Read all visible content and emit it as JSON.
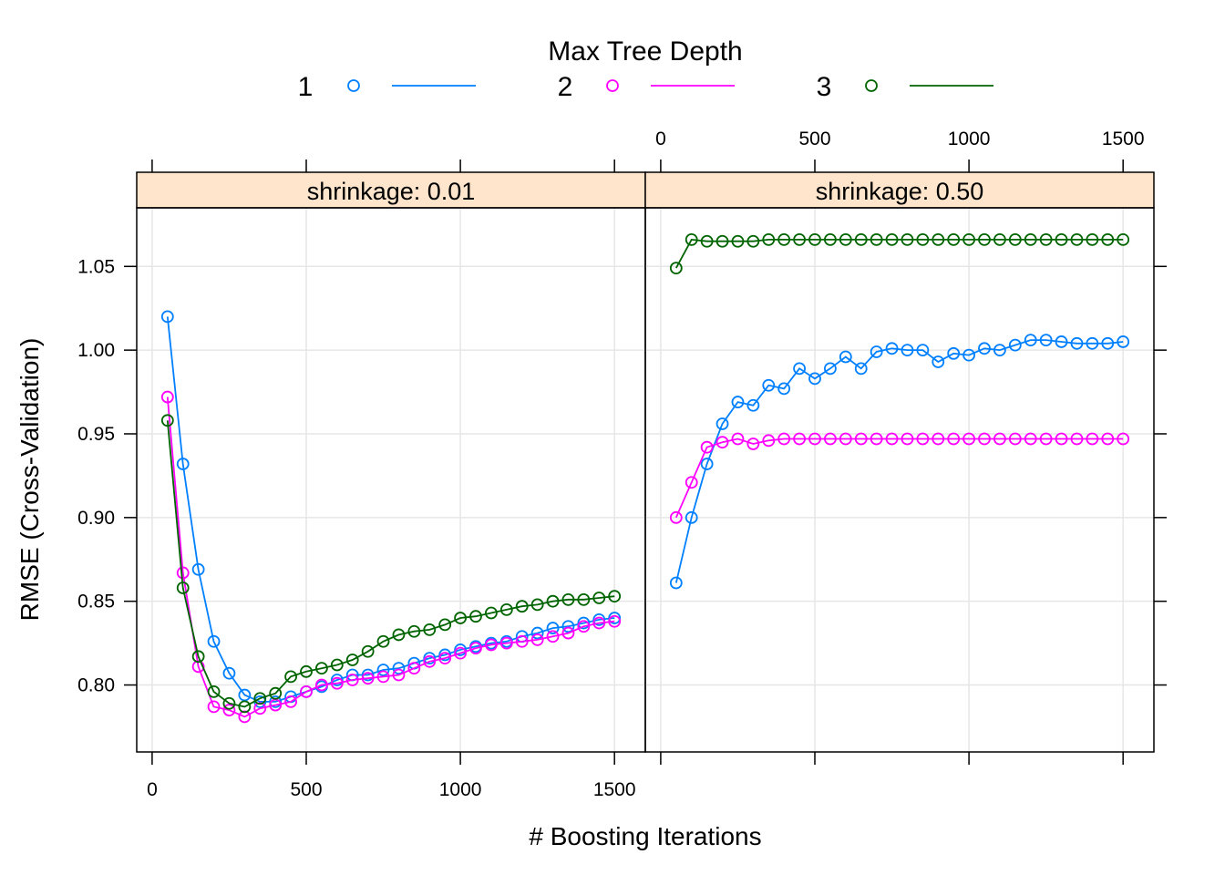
{
  "chart_data": {
    "type": "line",
    "xlabel": "# Boosting Iterations",
    "ylabel": "RMSE (Cross-Validation)",
    "xlim": [
      -50,
      1600
    ],
    "ylim": [
      0.76,
      1.085
    ],
    "x_ticks": [
      0,
      500,
      1000,
      1500
    ],
    "x_tick_labels": [
      "0",
      "500",
      "1000",
      "1500"
    ],
    "y_ticks": [
      0.8,
      0.85,
      0.9,
      0.95,
      1.0,
      1.05
    ],
    "y_tick_labels": [
      "0.80",
      "0.85",
      "0.90",
      "0.95",
      "1.00",
      "1.05"
    ],
    "grid": true,
    "legend": {
      "title": "Max Tree Depth",
      "position": "top",
      "entries": [
        {
          "label": "1",
          "color": "#0080ff"
        },
        {
          "label": "2",
          "color": "#ff00ff"
        },
        {
          "label": "3",
          "color": "#006400"
        }
      ]
    },
    "x": [
      50,
      100,
      150,
      200,
      250,
      300,
      350,
      400,
      450,
      500,
      550,
      600,
      650,
      700,
      750,
      800,
      850,
      900,
      950,
      1000,
      1050,
      1100,
      1150,
      1200,
      1250,
      1300,
      1350,
      1400,
      1450,
      1500
    ],
    "panels": [
      {
        "strip": "shrinkage: 0.01",
        "series": [
          {
            "name": "1",
            "color": "#0080ff",
            "values": [
              1.02,
              0.932,
              0.869,
              0.826,
              0.807,
              0.794,
              0.79,
              0.79,
              0.793,
              0.796,
              0.799,
              0.803,
              0.806,
              0.806,
              0.809,
              0.81,
              0.813,
              0.816,
              0.818,
              0.821,
              0.823,
              0.825,
              0.826,
              0.829,
              0.831,
              0.834,
              0.835,
              0.837,
              0.839,
              0.84
            ]
          },
          {
            "name": "2",
            "color": "#ff00ff",
            "values": [
              0.972,
              0.867,
              0.811,
              0.787,
              0.785,
              0.781,
              0.786,
              0.788,
              0.79,
              0.796,
              0.8,
              0.801,
              0.803,
              0.804,
              0.805,
              0.806,
              0.81,
              0.814,
              0.816,
              0.819,
              0.822,
              0.824,
              0.825,
              0.826,
              0.827,
              0.829,
              0.831,
              0.835,
              0.837,
              0.838
            ]
          },
          {
            "name": "3",
            "color": "#006400",
            "values": [
              0.958,
              0.858,
              0.817,
              0.796,
              0.789,
              0.787,
              0.792,
              0.795,
              0.805,
              0.808,
              0.81,
              0.812,
              0.815,
              0.82,
              0.826,
              0.83,
              0.832,
              0.833,
              0.836,
              0.84,
              0.841,
              0.843,
              0.845,
              0.847,
              0.848,
              0.85,
              0.851,
              0.851,
              0.852,
              0.853
            ]
          }
        ]
      },
      {
        "strip": "shrinkage: 0.50",
        "series": [
          {
            "name": "1",
            "color": "#0080ff",
            "values": [
              0.861,
              0.9,
              0.932,
              0.956,
              0.969,
              0.967,
              0.979,
              0.977,
              0.989,
              0.983,
              0.989,
              0.996,
              0.989,
              0.999,
              1.001,
              1.0,
              1.0,
              0.993,
              0.998,
              0.997,
              1.001,
              1.0,
              1.003,
              1.006,
              1.006,
              1.005,
              1.004,
              1.004,
              1.004,
              1.005
            ]
          },
          {
            "name": "2",
            "color": "#ff00ff",
            "values": [
              0.9,
              0.921,
              0.942,
              0.945,
              0.947,
              0.944,
              0.946,
              0.947,
              0.947,
              0.947,
              0.947,
              0.947,
              0.947,
              0.947,
              0.947,
              0.947,
              0.947,
              0.947,
              0.947,
              0.947,
              0.947,
              0.947,
              0.947,
              0.947,
              0.947,
              0.947,
              0.947,
              0.947,
              0.947,
              0.947
            ]
          },
          {
            "name": "3",
            "color": "#006400",
            "values": [
              1.049,
              1.066,
              1.065,
              1.065,
              1.065,
              1.065,
              1.066,
              1.066,
              1.066,
              1.066,
              1.066,
              1.066,
              1.066,
              1.066,
              1.066,
              1.066,
              1.066,
              1.066,
              1.066,
              1.066,
              1.066,
              1.066,
              1.066,
              1.066,
              1.066,
              1.066,
              1.066,
              1.066,
              1.066,
              1.066
            ]
          }
        ]
      }
    ]
  }
}
